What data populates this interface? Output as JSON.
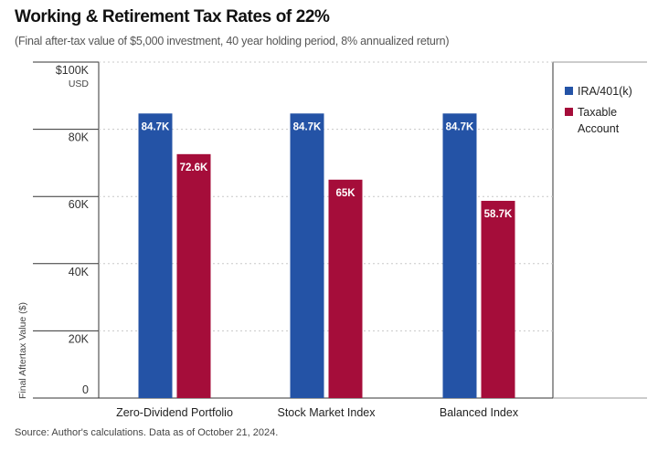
{
  "title": "Working & Retirement Tax Rates of 22%",
  "subtitle": "(Final after-tax value of $5,000 investment, 40 year holding period, 8% annualized return)",
  "source": "Source: Author's calculations. Data as of October 21, 2024.",
  "colors": {
    "ira": "#2453a6",
    "taxable": "#a50d3a",
    "grid": "#c8c8c8",
    "axis": "#333333"
  },
  "chart_data": {
    "type": "bar",
    "categories": [
      "Zero-Dividend Portfolio",
      "Stock Market Index",
      "Balanced Index"
    ],
    "series": [
      {
        "name": "IRA/401(k)",
        "values": [
          84.7,
          84.7,
          84.7
        ],
        "labels": [
          "84.7K",
          "84.7K",
          "84.7K"
        ]
      },
      {
        "name": "Taxable Account",
        "legend_lines": [
          "Taxable",
          "Account"
        ],
        "values": [
          72.6,
          65,
          58.7
        ],
        "labels": [
          "72.6K",
          "65K",
          "58.7K"
        ]
      }
    ],
    "ylabel": "Final Aftertax Value ($)",
    "yunit": "USD",
    "ylim": [
      0,
      100
    ],
    "yticks": [
      0,
      20,
      40,
      60,
      80,
      100
    ],
    "ytick_labels": [
      "0",
      "20K",
      "40K",
      "60K",
      "80K",
      "$100K"
    ],
    "grid": true,
    "legend": "right"
  }
}
